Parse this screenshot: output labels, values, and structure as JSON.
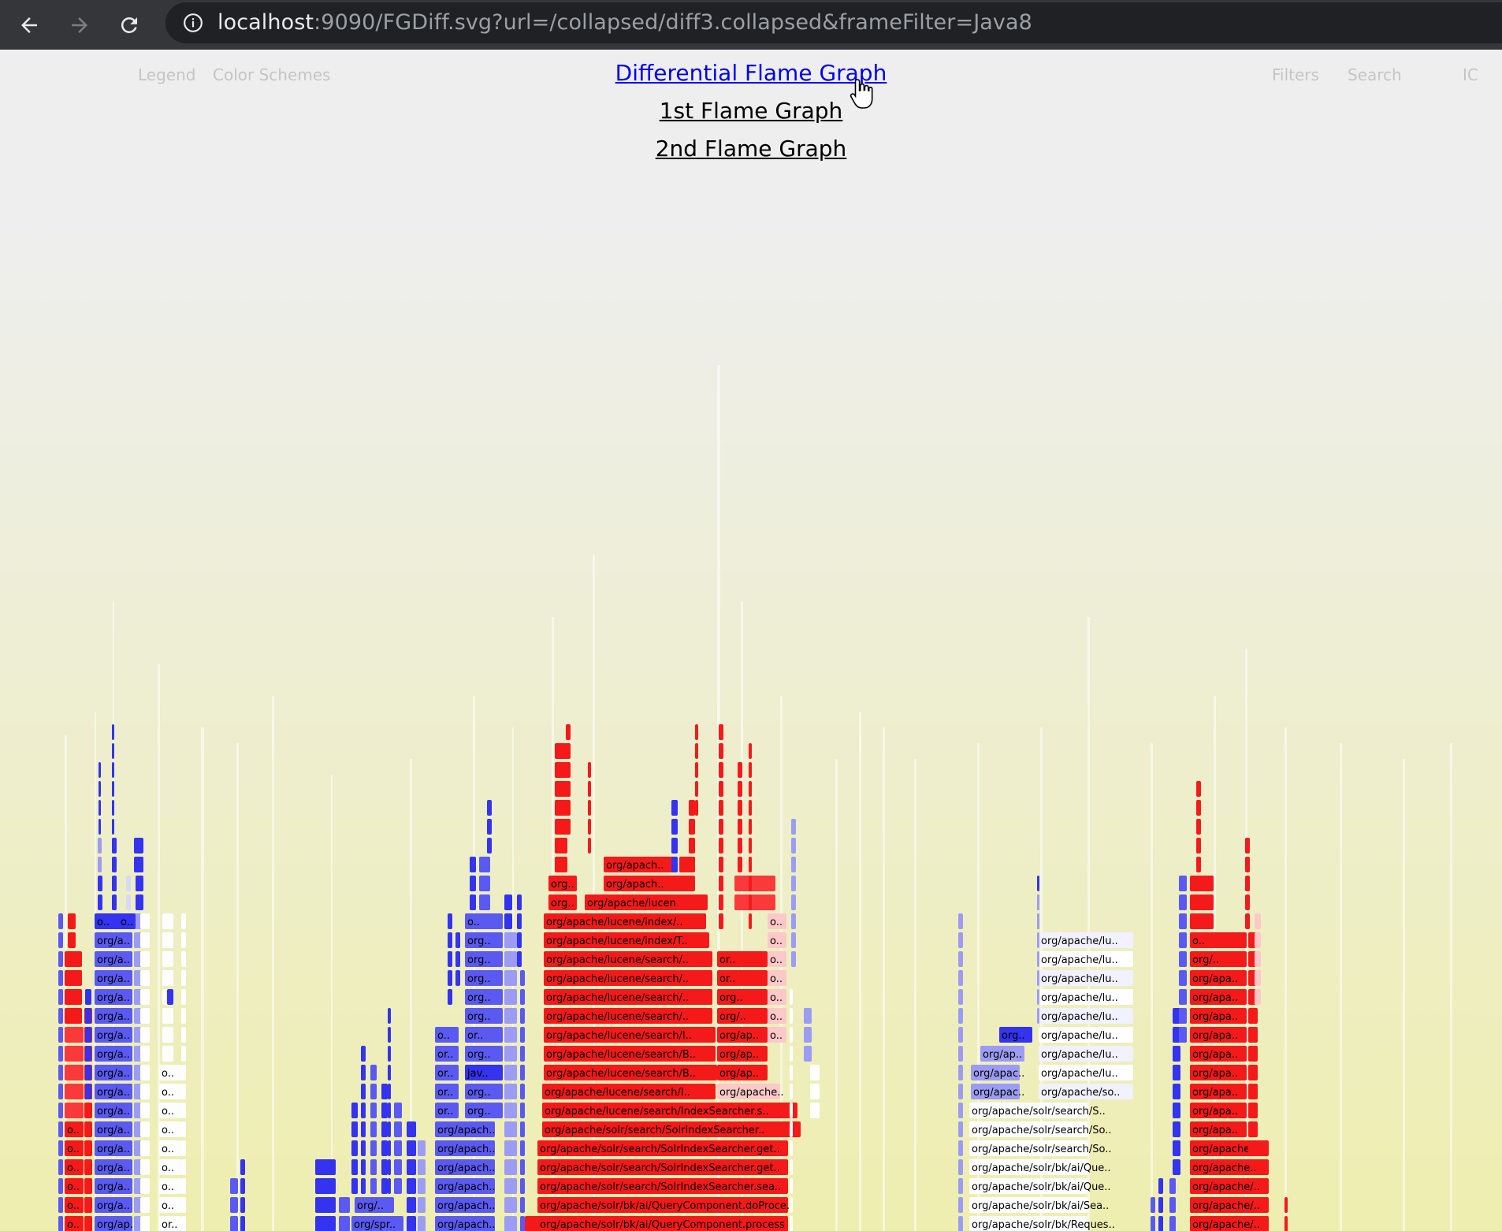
{
  "browser": {
    "url_host": "localhost",
    "url_rest": ":9090/FGDiff.svg?url=/collapsed/diff3.collapsed&frameFilter=Java8",
    "back_icon": "arrow-left-icon",
    "forward_icon": "arrow-right-icon",
    "reload_icon": "reload-icon",
    "info_icon": "info-icon"
  },
  "menu": {
    "legend": "Legend",
    "color_schemes": "Color Schemes",
    "filters": "Filters",
    "search": "Search",
    "ic": "IC"
  },
  "titles": {
    "differential": "Differential Flame Graph",
    "first": "1st Flame Graph",
    "second": "2nd Flame Graph"
  },
  "frame_labels": {
    "center_stack": [
      "org/apache/solr/bk/ai/QueryComponent.process",
      "org/apache/solr/bk/ai/QueryComponent.doProce..",
      "org/apache/solr/search/SolrIndexSearcher.sea..",
      "org/apache/solr/search/SolrIndexSearcher.get..",
      "org/apache/solr/search/SolrIndexSearcher.get..",
      "org/apache/solr/search/SolrIndexSearcher..",
      "org/apache/lucene/search/IndexSearcher.s..",
      "org/apache/lucene/search/I..",
      "org/apache/lucene/search/B..",
      "org/apache/lucene/search/B..",
      "org/apache/lucene/search/I..",
      "org/apache/lucene/search/..",
      "org/apache/lucene/search/..",
      "org/apache/lucene/search/..",
      "org/apache/lucene/search/..",
      "org/apache/lucene/index/T..",
      "org/apache/lucene/index/..",
      "org/apache/lucene..",
      "org/apach..",
      "org/apach.."
    ],
    "center_side": [
      "org/apache..",
      "org/ap..",
      "org/ap..",
      "org/ap..",
      "org/..",
      "org..",
      "or..",
      "or.."
    ],
    "center_small": [
      "org..",
      "org..",
      "o..",
      "o..",
      "o..",
      "o..",
      "o..",
      "o..",
      "o.."
    ],
    "right_stack": [
      "org/apache/solr/bk/Reques..",
      "org/apache/solr/bk/ai/Sea..",
      "org/apache/solr/bk/ai/Que..",
      "org/apache/solr/bk/ai/Que..",
      "org/apache/solr/search/So..",
      "org/apache/solr/search/So..",
      "org/apache/solr/search/S.."
    ],
    "right_upper": [
      "org/apache/so..",
      "org/apache/lu..",
      "org/apache/lu..",
      "org/apache/lu..",
      "org/apache/lu..",
      "org/apache/lu..",
      "org/apache/lu..",
      "org/apache/lu..",
      "org/apache/lu.."
    ],
    "right_blue": [
      "org/apac..",
      "org/apac..",
      "org/ap..",
      "org.."
    ],
    "far_right": [
      "org/apache/..",
      "org/apache/..",
      "org/apache/..",
      "org/apache..",
      "org/apache..",
      "org/apa..",
      "org/apa..",
      "org/apa..",
      "org/apa..",
      "org/apa..",
      "org/apa..",
      "org/apa..",
      "org/apa..",
      "org/apa..",
      "org/..",
      "o.."
    ],
    "left_col": [
      "org/ap..",
      "org/a..",
      "org/a..",
      "org/a..",
      "org/a..",
      "org/a..",
      "org/a..",
      "org/a..",
      "org/a..",
      "org/a..",
      "org/a..",
      "org/a..",
      "org/a..",
      "org/a..",
      "org/a..",
      "org/a..",
      "o.."
    ],
    "left_red": [
      "o..",
      "o..",
      "o..",
      "o..",
      "o..",
      "o.."
    ],
    "left_white": [
      "or..",
      "o..",
      "o..",
      "o..",
      "o..",
      "o..",
      "o..",
      "o..",
      "o.."
    ],
    "mid_blue": [
      "org/apach..",
      "org/apach..",
      "org/apach..",
      "org/apach..",
      "org/apach..",
      "org/apach..",
      "org..",
      "org..",
      "jav..",
      "org..",
      "or..",
      "org..",
      "org..",
      "org..",
      "org..",
      "org..",
      "o.."
    ],
    "mid_blue_left": [
      "or..",
      "or..",
      "or..",
      "or..",
      "o.."
    ],
    "lower_blue": [
      "org/spr..",
      "org/.."
    ]
  }
}
